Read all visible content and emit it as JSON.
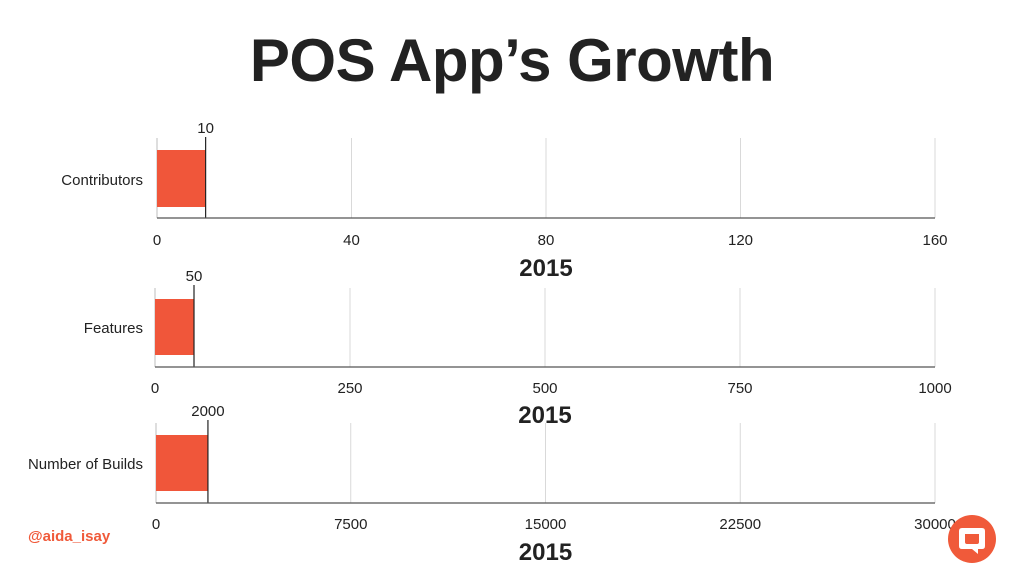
{
  "title": "POS App’s Growth",
  "handle": "@aida_isay",
  "colors": {
    "bar": "#F0563A",
    "accent": "#F05A3A",
    "grid": "#d9d9d9",
    "axis": "#222222"
  },
  "logo_icon": "chat-bubble-logo",
  "chart_data": [
    {
      "type": "bar",
      "orientation": "horizontal",
      "categories": [
        "Contributors"
      ],
      "values": [
        10
      ],
      "data_labels": [
        "10"
      ],
      "xlabel": "2015",
      "xlim": [
        0,
        160
      ],
      "xticks": [
        0,
        40,
        80,
        120,
        160
      ],
      "grid": true
    },
    {
      "type": "bar",
      "orientation": "horizontal",
      "categories": [
        "Features"
      ],
      "values": [
        50
      ],
      "data_labels": [
        "50"
      ],
      "xlabel": "2015",
      "xlim": [
        0,
        1000
      ],
      "xticks": [
        0,
        250,
        500,
        750,
        1000
      ],
      "grid": true
    },
    {
      "type": "bar",
      "orientation": "horizontal",
      "categories": [
        "Number of Builds"
      ],
      "values": [
        2000
      ],
      "data_labels": [
        "2000"
      ],
      "xlabel": "2015",
      "xlim": [
        0,
        30000
      ],
      "xticks": [
        0,
        7500,
        15000,
        22500,
        30000
      ],
      "grid": true
    }
  ]
}
